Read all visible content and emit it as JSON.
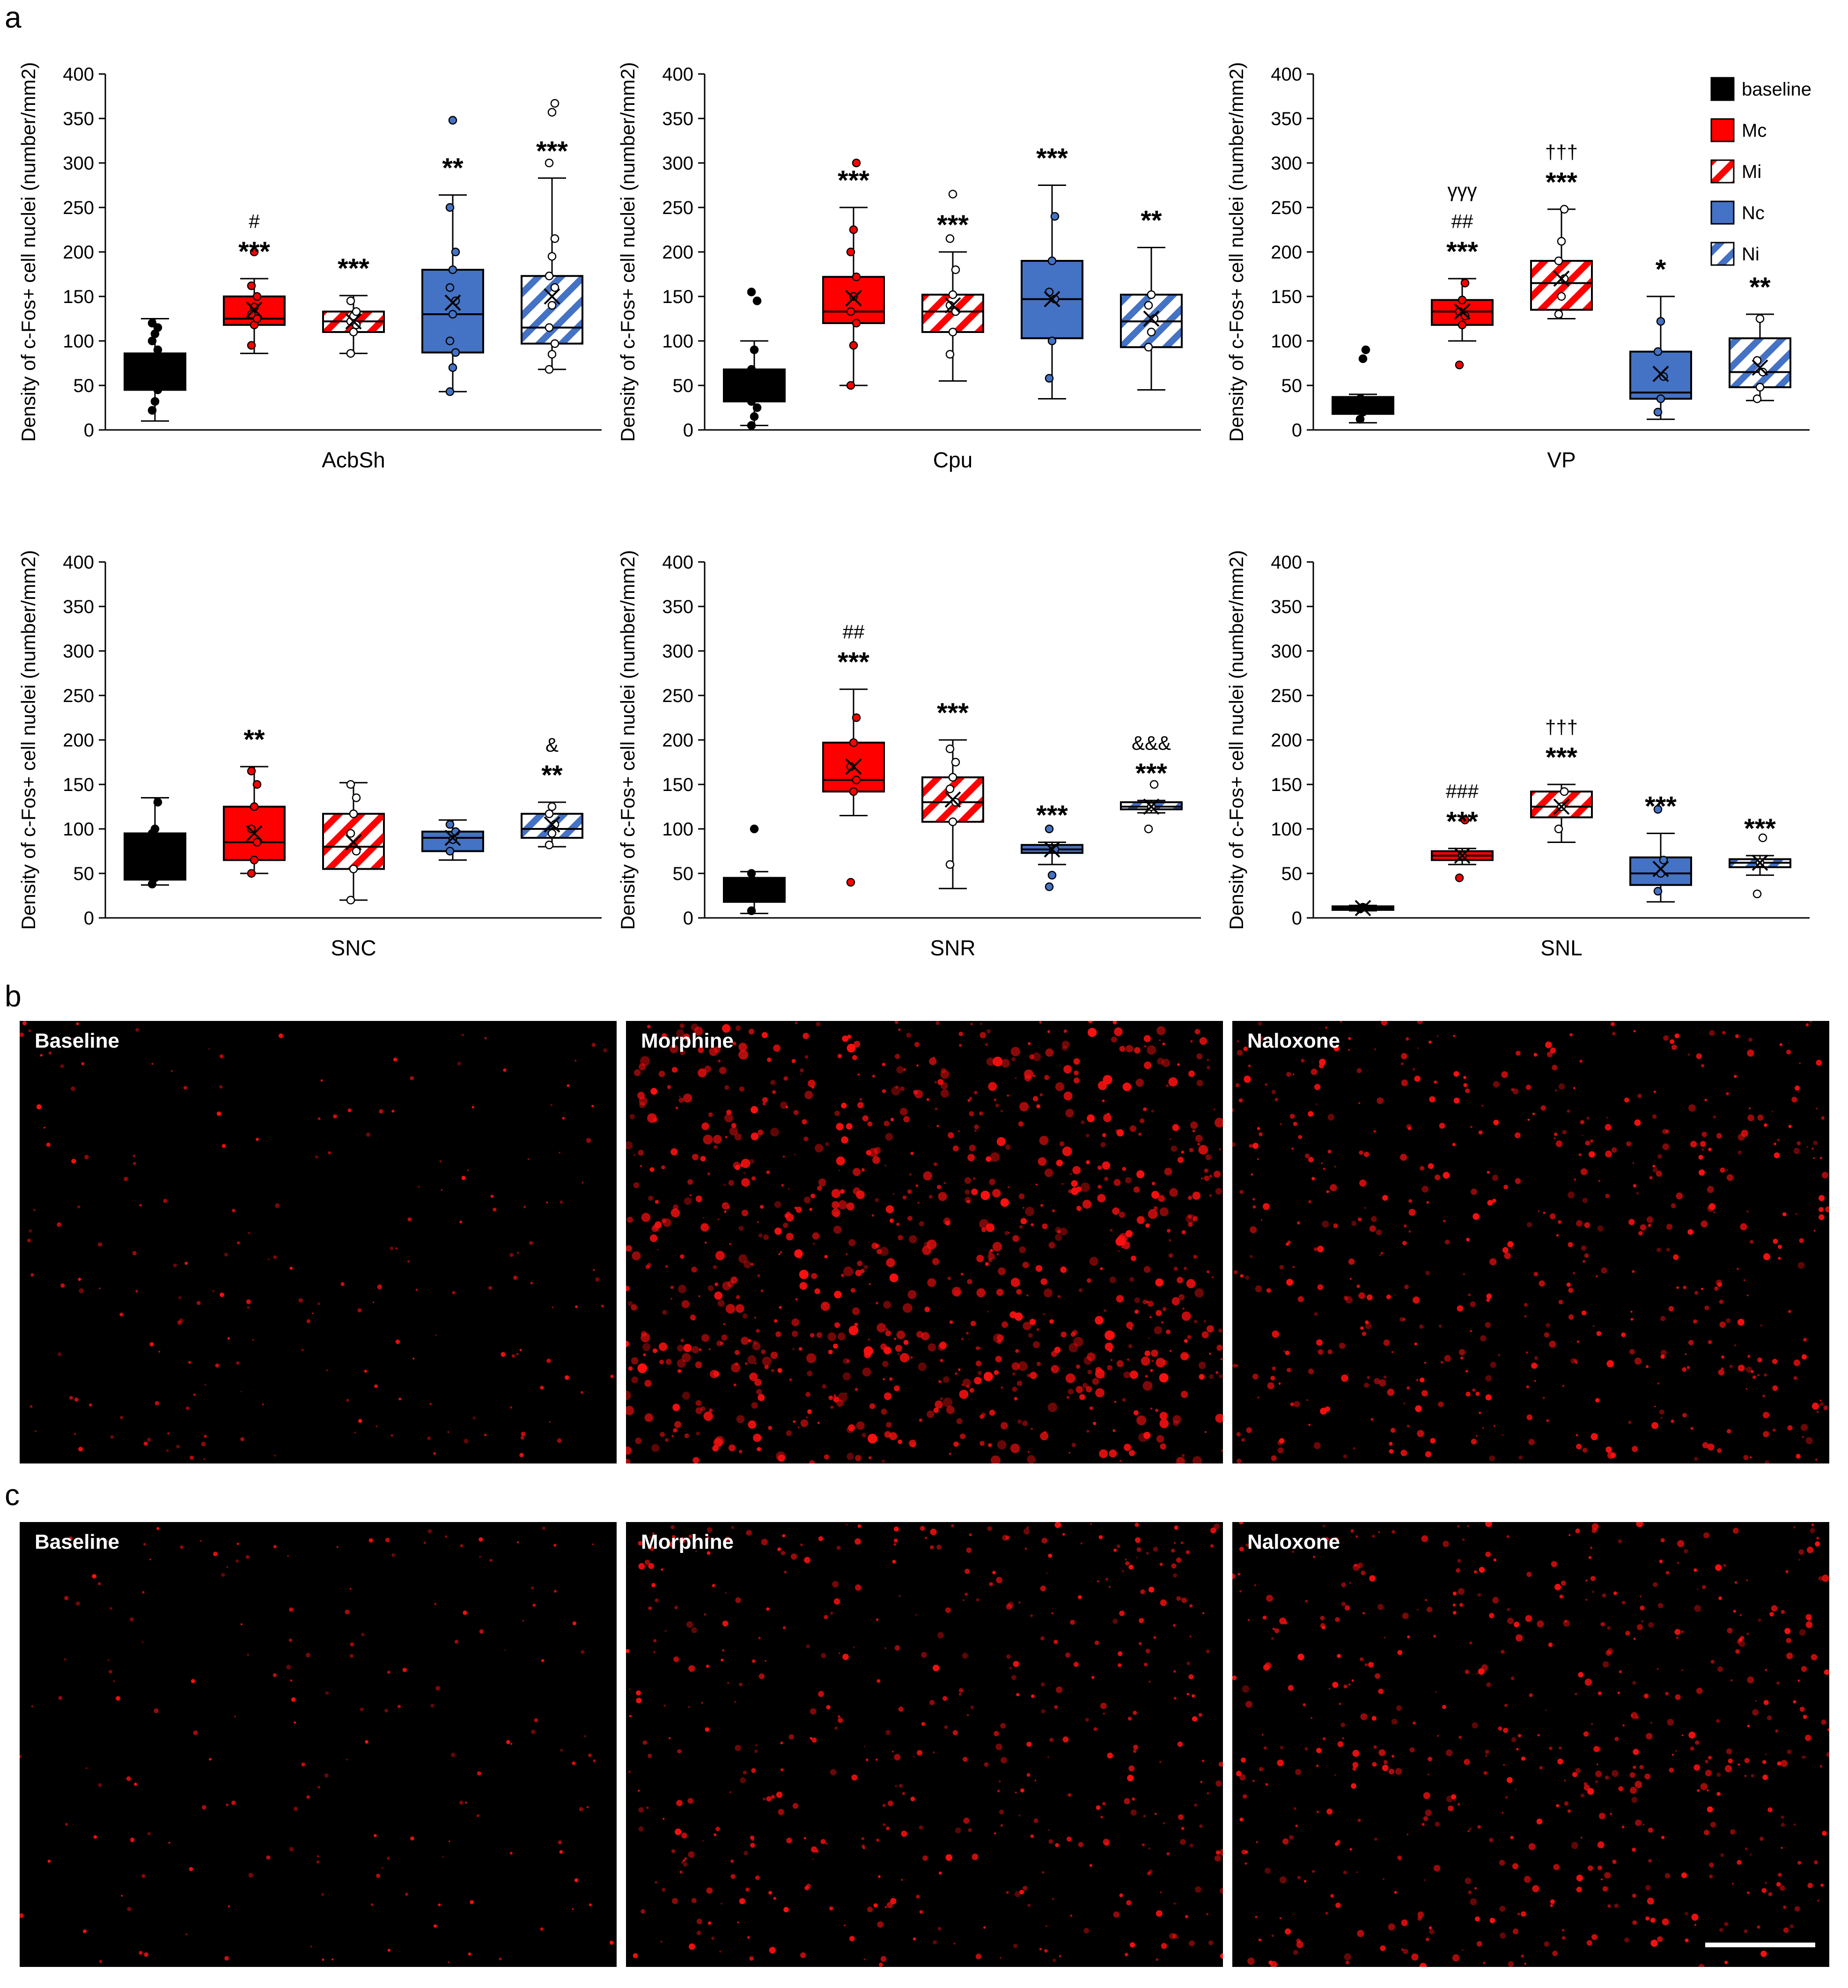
{
  "panel_letters": {
    "a": "a",
    "b": "b",
    "c": "c"
  },
  "legend": [
    {
      "key": "baseline",
      "label": "baseline",
      "color": "#000000",
      "hatched": false
    },
    {
      "key": "Mc",
      "label": "Mc",
      "color": "#ff0000",
      "hatched": false
    },
    {
      "key": "Mi",
      "label": "Mi",
      "color": "#ff0000",
      "hatched": true
    },
    {
      "key": "Nc",
      "label": "Nc",
      "color": "#4472c4",
      "hatched": false
    },
    {
      "key": "Ni",
      "label": "Ni",
      "color": "#4472c4",
      "hatched": true
    }
  ],
  "colors": {
    "baseline": "#000000",
    "morphine": "#ff0000",
    "naloxone": "#4472c4",
    "micro_bg": "#000000",
    "micro_dot": "#ff1010"
  },
  "chart_data": [
    {
      "type": "box",
      "region": "AcbSh",
      "xlabel": "AcbSh",
      "ylabel": "Density of c-Fos+ cell nuclei (number/mm2)",
      "ylim": [
        0,
        400
      ],
      "yticks": [
        0,
        50,
        100,
        150,
        200,
        250,
        300,
        350,
        400
      ],
      "boxes": [
        {
          "group": "baseline",
          "q1": 45,
          "median": 67,
          "q3": 86,
          "mean": 67,
          "whisker_low": 10,
          "whisker_high": 125,
          "points": [
            22,
            32,
            45,
            55,
            62,
            67,
            72,
            82,
            90,
            100,
            108,
            115,
            120
          ],
          "annotations": []
        },
        {
          "group": "Mc",
          "q1": 118,
          "median": 125,
          "q3": 150,
          "mean": 135,
          "whisker_low": 86,
          "whisker_high": 170,
          "points": [
            95,
            118,
            125,
            130,
            138,
            150,
            162,
            200
          ],
          "annotations": [
            "***",
            "#"
          ]
        },
        {
          "group": "Mi",
          "q1": 110,
          "median": 122,
          "q3": 133,
          "mean": 122,
          "whisker_low": 86,
          "whisker_high": 151,
          "points": [
            86,
            110,
            118,
            122,
            128,
            133,
            145
          ],
          "annotations": [
            "***"
          ]
        },
        {
          "group": "Nc",
          "q1": 87,
          "median": 130,
          "q3": 180,
          "mean": 143,
          "whisker_low": 43,
          "whisker_high": 264,
          "points": [
            43,
            70,
            87,
            100,
            130,
            145,
            160,
            180,
            200,
            250,
            348
          ],
          "annotations": [
            "**"
          ]
        },
        {
          "group": "Ni",
          "q1": 97,
          "median": 115,
          "q3": 173,
          "mean": 150,
          "whisker_low": 68,
          "whisker_high": 283,
          "points": [
            68,
            85,
            97,
            115,
            140,
            160,
            173,
            195,
            215,
            300,
            357,
            367
          ],
          "annotations": [
            "***"
          ]
        }
      ]
    },
    {
      "type": "box",
      "region": "Cpu",
      "xlabel": "Cpu",
      "ylabel": "Density of c-Fos+ cell nuclei (number/mm2)",
      "ylim": [
        0,
        400
      ],
      "yticks": [
        0,
        50,
        100,
        150,
        200,
        250,
        300,
        350,
        400
      ],
      "boxes": [
        {
          "group": "baseline",
          "q1": 32,
          "median": 48,
          "q3": 68,
          "mean": 50,
          "whisker_low": 5,
          "whisker_high": 100,
          "points": [
            5,
            15,
            25,
            32,
            48,
            55,
            68,
            90,
            145,
            155
          ],
          "annotations": []
        },
        {
          "group": "Mc",
          "q1": 120,
          "median": 133,
          "q3": 172,
          "mean": 148,
          "whisker_low": 50,
          "whisker_high": 250,
          "points": [
            50,
            95,
            120,
            133,
            150,
            172,
            200,
            225,
            300
          ],
          "annotations": [
            "***"
          ]
        },
        {
          "group": "Mi",
          "q1": 110,
          "median": 133,
          "q3": 152,
          "mean": 140,
          "whisker_low": 55,
          "whisker_high": 200,
          "points": [
            85,
            110,
            133,
            140,
            152,
            180,
            215,
            265
          ],
          "annotations": [
            "***"
          ]
        },
        {
          "group": "Nc",
          "q1": 103,
          "median": 147,
          "q3": 190,
          "mean": 147,
          "whisker_low": 35,
          "whisker_high": 275,
          "points": [
            58,
            100,
            147,
            155,
            190,
            240
          ],
          "annotations": [
            "***"
          ]
        },
        {
          "group": "Ni",
          "q1": 93,
          "median": 122,
          "q3": 152,
          "mean": 125,
          "whisker_low": 45,
          "whisker_high": 205,
          "points": [
            93,
            110,
            125,
            140,
            152
          ],
          "annotations": [
            "**"
          ]
        }
      ]
    },
    {
      "type": "box",
      "region": "VP",
      "xlabel": "VP",
      "ylabel": "Density of c-Fos+ cell nuclei (number/mm2)",
      "ylim": [
        0,
        400
      ],
      "yticks": [
        0,
        50,
        100,
        150,
        200,
        250,
        300,
        350,
        400
      ],
      "boxes": [
        {
          "group": "baseline",
          "q1": 18,
          "median": 28,
          "q3": 37,
          "mean": 28,
          "whisker_low": 8,
          "whisker_high": 40,
          "points": [
            12,
            20,
            28,
            35,
            80,
            90
          ],
          "annotations": []
        },
        {
          "group": "Mc",
          "q1": 118,
          "median": 133,
          "q3": 146,
          "mean": 133,
          "whisker_low": 100,
          "whisker_high": 170,
          "points": [
            73,
            118,
            128,
            133,
            146,
            165
          ],
          "annotations": [
            "***",
            "##",
            "γγγ"
          ]
        },
        {
          "group": "Mi",
          "q1": 135,
          "median": 165,
          "q3": 190,
          "mean": 170,
          "whisker_low": 125,
          "whisker_high": 248,
          "points": [
            130,
            150,
            170,
            190,
            212,
            248
          ],
          "annotations": [
            "***",
            "†††"
          ]
        },
        {
          "group": "Nc",
          "q1": 35,
          "median": 42,
          "q3": 88,
          "mean": 63,
          "whisker_low": 12,
          "whisker_high": 150,
          "points": [
            20,
            35,
            60,
            88,
            122
          ],
          "annotations": [
            "*"
          ]
        },
        {
          "group": "Ni",
          "q1": 48,
          "median": 65,
          "q3": 103,
          "mean": 70,
          "whisker_low": 33,
          "whisker_high": 130,
          "points": [
            35,
            48,
            65,
            78,
            125
          ],
          "annotations": [
            "**"
          ]
        }
      ]
    },
    {
      "type": "box",
      "region": "SNC",
      "xlabel": "SNC",
      "ylabel": "Density of c-Fos+ cell nuclei (number/mm2)",
      "ylim": [
        0,
        400
      ],
      "yticks": [
        0,
        50,
        100,
        150,
        200,
        250,
        300,
        350,
        400
      ],
      "boxes": [
        {
          "group": "baseline",
          "q1": 43,
          "median": 60,
          "q3": 95,
          "mean": 70,
          "whisker_low": 37,
          "whisker_high": 135,
          "points": [
            38,
            45,
            60,
            95,
            100,
            130
          ],
          "annotations": []
        },
        {
          "group": "Mc",
          "q1": 65,
          "median": 85,
          "q3": 125,
          "mean": 95,
          "whisker_low": 50,
          "whisker_high": 170,
          "points": [
            50,
            65,
            85,
            100,
            125,
            150,
            165
          ],
          "annotations": [
            "**"
          ]
        },
        {
          "group": "Mi",
          "q1": 55,
          "median": 80,
          "q3": 117,
          "mean": 85,
          "whisker_low": 20,
          "whisker_high": 152,
          "points": [
            20,
            55,
            75,
            95,
            117,
            135,
            150
          ],
          "annotations": []
        },
        {
          "group": "Nc",
          "q1": 75,
          "median": 90,
          "q3": 97,
          "mean": 90,
          "whisker_low": 65,
          "whisker_high": 110,
          "points": [
            75,
            88,
            97,
            105
          ],
          "annotations": []
        },
        {
          "group": "Ni",
          "q1": 90,
          "median": 100,
          "q3": 117,
          "mean": 105,
          "whisker_low": 80,
          "whisker_high": 130,
          "points": [
            82,
            95,
            105,
            117,
            125
          ],
          "annotations": [
            "**",
            "&"
          ]
        }
      ]
    },
    {
      "type": "box",
      "region": "SNR",
      "xlabel": "SNR",
      "ylabel": "Density of c-Fos+ cell nuclei (number/mm2)",
      "ylim": [
        0,
        400
      ],
      "yticks": [
        0,
        50,
        100,
        150,
        200,
        250,
        300,
        350,
        400
      ],
      "boxes": [
        {
          "group": "baseline",
          "q1": 18,
          "median": 35,
          "q3": 45,
          "mean": 35,
          "whisker_low": 5,
          "whisker_high": 52,
          "points": [
            8,
            25,
            35,
            50,
            100
          ],
          "annotations": []
        },
        {
          "group": "Mc",
          "q1": 142,
          "median": 155,
          "q3": 197,
          "mean": 170,
          "whisker_low": 115,
          "whisker_high": 257,
          "points": [
            40,
            142,
            155,
            170,
            197,
            225
          ],
          "annotations": [
            "***",
            "##"
          ]
        },
        {
          "group": "Mi",
          "q1": 108,
          "median": 130,
          "q3": 158,
          "mean": 133,
          "whisker_low": 33,
          "whisker_high": 200,
          "points": [
            60,
            108,
            130,
            145,
            158,
            175,
            190
          ],
          "annotations": [
            "***"
          ]
        },
        {
          "group": "Nc",
          "q1": 73,
          "median": 77,
          "q3": 82,
          "mean": 77,
          "whisker_low": 60,
          "whisker_high": 85,
          "points": [
            35,
            48,
            77,
            100
          ],
          "annotations": [
            "***"
          ]
        },
        {
          "group": "Ni",
          "q1": 122,
          "median": 125,
          "q3": 130,
          "mean": 125,
          "whisker_low": 118,
          "whisker_high": 132,
          "points": [
            100,
            125,
            150
          ],
          "annotations": [
            "***",
            "&&&"
          ]
        }
      ]
    },
    {
      "type": "box",
      "region": "SNL",
      "xlabel": "SNL",
      "ylabel": "Density of c-Fos+ cell nuclei (number/mm2)",
      "ylim": [
        0,
        400
      ],
      "yticks": [
        0,
        50,
        100,
        150,
        200,
        250,
        300,
        350,
        400
      ],
      "boxes": [
        {
          "group": "baseline",
          "q1": 9,
          "median": 11,
          "q3": 13,
          "mean": 11,
          "whisker_low": 8,
          "whisker_high": 14,
          "points": [
            10,
            12
          ],
          "annotations": []
        },
        {
          "group": "Mc",
          "q1": 65,
          "median": 70,
          "q3": 75,
          "mean": 70,
          "whisker_low": 60,
          "whisker_high": 78,
          "points": [
            45,
            70,
            110
          ],
          "annotations": [
            "***",
            "###"
          ]
        },
        {
          "group": "Mi",
          "q1": 113,
          "median": 125,
          "q3": 142,
          "mean": 125,
          "whisker_low": 85,
          "whisker_high": 150,
          "points": [
            100,
            125,
            142
          ],
          "annotations": [
            "***",
            "†††"
          ]
        },
        {
          "group": "Nc",
          "q1": 37,
          "median": 50,
          "q3": 68,
          "mean": 55,
          "whisker_low": 18,
          "whisker_high": 95,
          "points": [
            30,
            50,
            65,
            122
          ],
          "annotations": [
            "***"
          ]
        },
        {
          "group": "Ni",
          "q1": 57,
          "median": 62,
          "q3": 66,
          "mean": 62,
          "whisker_low": 48,
          "whisker_high": 70,
          "points": [
            27,
            62,
            90
          ],
          "annotations": [
            "***"
          ]
        }
      ]
    }
  ],
  "micrographs": {
    "b": [
      {
        "label": "Baseline",
        "density": 0.15,
        "seed": 11
      },
      {
        "label": "Morphine",
        "density": 1.0,
        "seed": 23
      },
      {
        "label": "Naloxone",
        "density": 0.55,
        "seed": 37
      }
    ],
    "c": [
      {
        "label": "Baseline",
        "density": 0.12,
        "seed": 51
      },
      {
        "label": "Morphine",
        "density": 0.45,
        "seed": 67
      },
      {
        "label": "Naloxone",
        "density": 0.55,
        "seed": 79
      }
    ]
  }
}
